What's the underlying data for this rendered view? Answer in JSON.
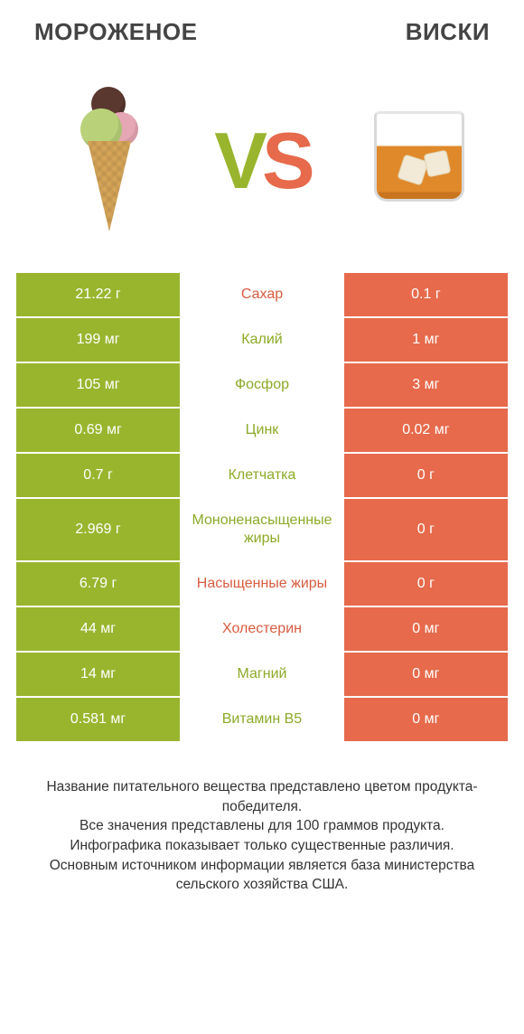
{
  "titles": {
    "left": "МОРОЖЕНОЕ",
    "right": "ВИСКИ"
  },
  "vs": {
    "v": "V",
    "s": "S"
  },
  "colors": {
    "green": "#99b52e",
    "orange": "#e66a4b",
    "green_text": "#8daa27",
    "orange_text": "#d85c3f",
    "background": "#ffffff"
  },
  "table": {
    "rows": [
      {
        "left": "21.22 г",
        "mid": "Сахар",
        "right": "0.1 г",
        "winner": "orange"
      },
      {
        "left": "199 мг",
        "mid": "Калий",
        "right": "1 мг",
        "winner": "green"
      },
      {
        "left": "105 мг",
        "mid": "Фосфор",
        "right": "3 мг",
        "winner": "green"
      },
      {
        "left": "0.69 мг",
        "mid": "Цинк",
        "right": "0.02 мг",
        "winner": "green"
      },
      {
        "left": "0.7 г",
        "mid": "Клетчатка",
        "right": "0 г",
        "winner": "green"
      },
      {
        "left": "2.969 г",
        "mid": "Мононенасыщенные жиры",
        "right": "0 г",
        "winner": "green"
      },
      {
        "left": "6.79 г",
        "mid": "Насыщенные жиры",
        "right": "0 г",
        "winner": "orange"
      },
      {
        "left": "44 мг",
        "mid": "Холестерин",
        "right": "0 мг",
        "winner": "orange"
      },
      {
        "left": "14 мг",
        "mid": "Магний",
        "right": "0 мг",
        "winner": "green"
      },
      {
        "left": "0.581 мг",
        "mid": "Витамин B5",
        "right": "0 мг",
        "winner": "green"
      }
    ]
  },
  "footer": {
    "line1": "Название питательного вещества представлено цветом продукта-победителя.",
    "line2": "Все значения представлены для 100 граммов продукта.",
    "line3": "Инфографика показывает только существенные различия.",
    "line4": "Основным источником информации является база министерства сельского хозяйства США."
  }
}
